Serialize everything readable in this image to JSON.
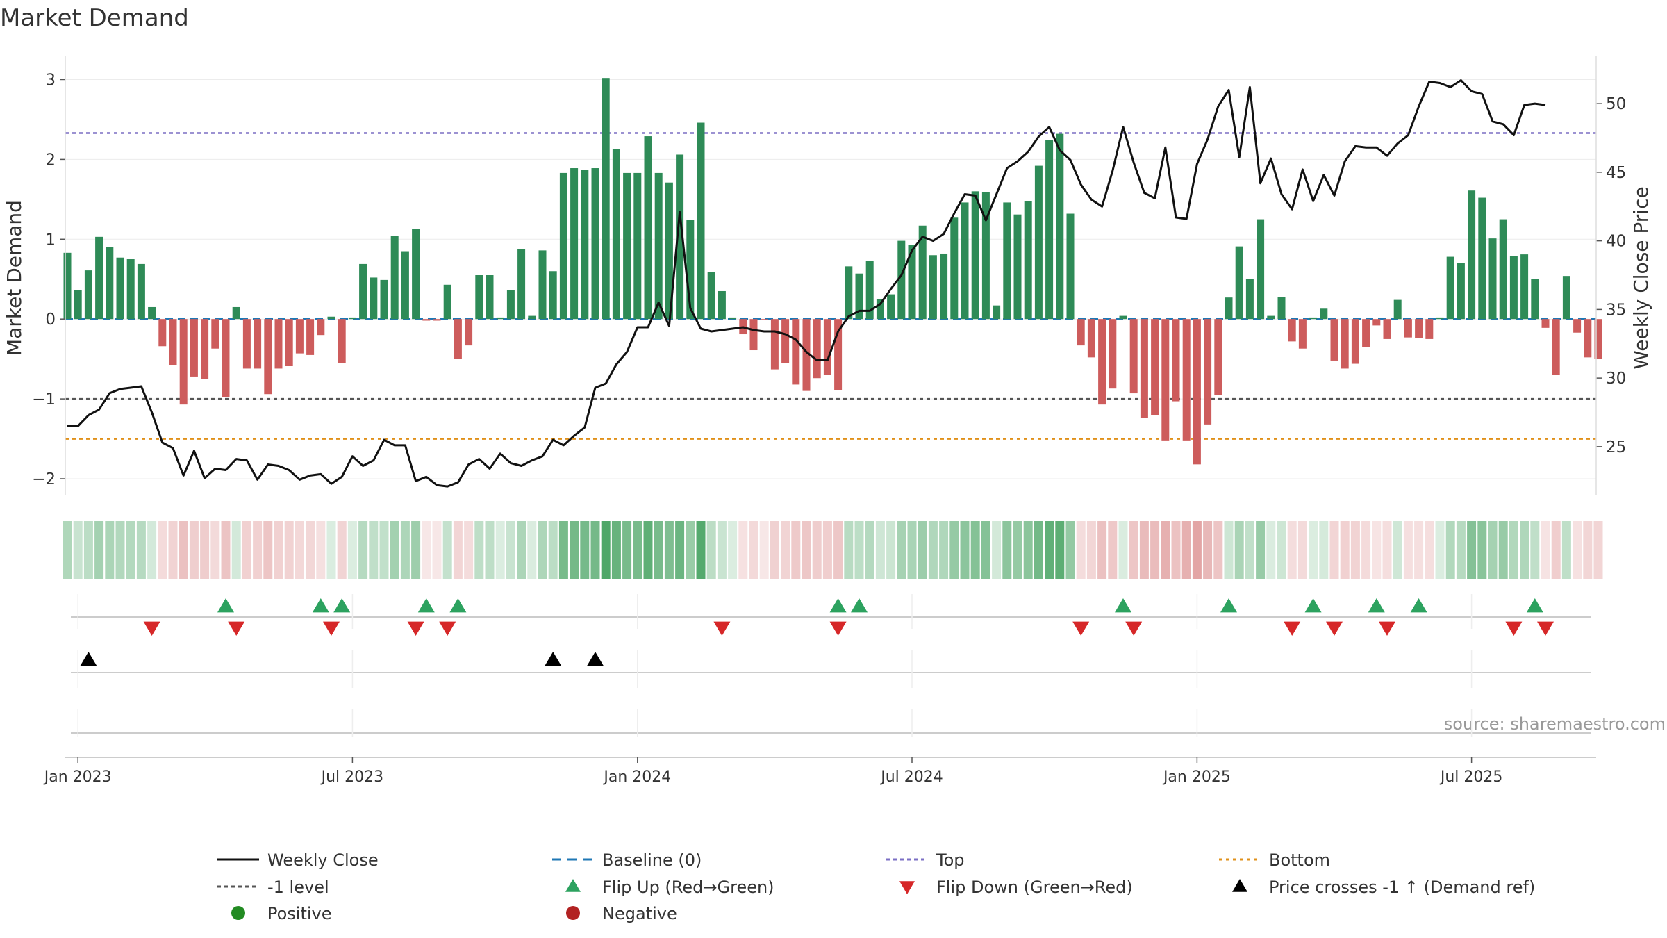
{
  "chart_data": {
    "type": "bar",
    "title": "Market Demand",
    "ylabel_left": "Market Demand",
    "ylabel_right": "Weekly Close Price",
    "source": "source: sharemaestro.com",
    "left_axis": {
      "range": [
        -2.2,
        3.3
      ],
      "ticks": [
        3,
        2,
        1,
        0,
        -1,
        -2
      ],
      "tick_labels": [
        "3",
        "2",
        "1",
        "0",
        "−1",
        "−2"
      ]
    },
    "right_axis": {
      "range": [
        21.5,
        53.5
      ],
      "ticks": [
        50,
        45,
        40,
        35,
        30,
        25
      ],
      "tick_labels": [
        "50",
        "45",
        "40",
        "35",
        "30",
        "25"
      ]
    },
    "x_axis": {
      "start": "2022-12-26",
      "weeks": 146,
      "ticks": [
        {
          "week": 1,
          "label": "Jan 2023"
        },
        {
          "week": 27,
          "label": "Jul 2023"
        },
        {
          "week": 54,
          "label": "Jan 2024"
        },
        {
          "week": 80,
          "label": "Jul 2024"
        },
        {
          "week": 107,
          "label": "Jan 2025"
        },
        {
          "week": 133,
          "label": "Jul 2025"
        }
      ]
    },
    "reference_lines": {
      "baseline": 0,
      "top": 2.33,
      "minus_one": -1,
      "bottom": -1.5
    },
    "series": [
      {
        "name": "Market Demand",
        "kind": "bar",
        "values": [
          0.83,
          0.36,
          0.61,
          1.03,
          0.9,
          0.77,
          0.75,
          0.69,
          0.15,
          -0.34,
          -0.58,
          -1.07,
          -0.72,
          -0.75,
          -0.37,
          -0.98,
          0.15,
          -0.62,
          -0.62,
          -0.94,
          -0.62,
          -0.59,
          -0.43,
          -0.45,
          -0.2,
          0.03,
          -0.55,
          0.02,
          0.69,
          0.52,
          0.49,
          1.04,
          0.85,
          1.13,
          -0.02,
          -0.02,
          0.43,
          -0.5,
          -0.33,
          0.55,
          0.55,
          0.02,
          0.36,
          0.88,
          0.04,
          0.86,
          0.6,
          1.83,
          1.89,
          1.87,
          1.89,
          3.02,
          2.13,
          1.83,
          1.83,
          2.29,
          1.83,
          1.71,
          2.06,
          1.24,
          2.46,
          0.59,
          0.35,
          0.02,
          -0.19,
          -0.39,
          -0.01,
          -0.63,
          -0.55,
          -0.82,
          -0.9,
          -0.74,
          -0.7,
          -0.89,
          0.66,
          0.57,
          0.73,
          0.25,
          0.31,
          0.98,
          0.93,
          1.17,
          0.8,
          0.82,
          1.27,
          1.46,
          1.6,
          1.59,
          0.17,
          1.46,
          1.31,
          1.48,
          1.92,
          2.24,
          2.32,
          1.32,
          -0.33,
          -0.48,
          -1.07,
          -0.87,
          0.04,
          -0.93,
          -1.24,
          -1.2,
          -1.52,
          -1.03,
          -1.52,
          -1.82,
          -1.32,
          -0.95,
          0.27,
          0.91,
          0.5,
          1.25,
          0.04,
          0.28,
          -0.28,
          -0.37,
          0.02,
          0.13,
          -0.52,
          -0.62,
          -0.56,
          -0.35,
          -0.08,
          -0.25,
          0.24,
          -0.23,
          -0.24,
          -0.25,
          0.02,
          0.78,
          0.7,
          1.61,
          1.52,
          1.01,
          1.25,
          0.79,
          0.81,
          0.5,
          -0.11,
          -0.7,
          0.54,
          -0.17,
          -0.48,
          -0.5
        ]
      },
      {
        "name": "Weekly Close",
        "kind": "line",
        "values": [
          26.5,
          26.5,
          27.3,
          27.7,
          28.9,
          29.2,
          29.3,
          29.4,
          27.5,
          25.3,
          24.9,
          22.9,
          24.7,
          22.7,
          23.4,
          23.3,
          24.1,
          24.0,
          22.6,
          23.7,
          23.6,
          23.3,
          22.6,
          22.9,
          23.0,
          22.3,
          22.8,
          24.3,
          23.6,
          24.0,
          25.5,
          25.1,
          25.1,
          22.5,
          22.8,
          22.2,
          22.1,
          22.4,
          23.7,
          24.1,
          23.4,
          24.5,
          23.8,
          23.6,
          24.0,
          24.3,
          25.5,
          25.1,
          25.8,
          26.4,
          29.3,
          29.6,
          31.0,
          31.9,
          33.7,
          33.7,
          35.5,
          33.8,
          42.1,
          35.1,
          33.6,
          33.4,
          33.5,
          33.6,
          33.7,
          33.5,
          33.4,
          33.4,
          33.2,
          32.8,
          31.9,
          31.3,
          31.3,
          33.4,
          34.5,
          34.9,
          34.9,
          35.4,
          36.5,
          37.5,
          39.3,
          40.3,
          40.0,
          40.5,
          42.0,
          43.4,
          43.3,
          41.5,
          43.4,
          45.3,
          45.8,
          46.5,
          47.6,
          48.3,
          46.6,
          45.9,
          44.1,
          43.0,
          42.5,
          45.1,
          48.3,
          45.7,
          43.5,
          43.1,
          46.8,
          41.7,
          41.6,
          45.6,
          47.4,
          49.8,
          51.0,
          46.1,
          51.2,
          44.2,
          46.0,
          43.4,
          42.3,
          45.2,
          42.9,
          44.8,
          43.3,
          45.8,
          46.9,
          46.8,
          46.8,
          46.2,
          47.1,
          47.7,
          49.8,
          51.6,
          51.5,
          51.2,
          51.7,
          50.9,
          50.7,
          48.7,
          48.5,
          47.7,
          49.9,
          50.0,
          49.9
        ]
      }
    ],
    "markers": {
      "flip_up_weeks": [
        15,
        24,
        26,
        34,
        37,
        73,
        75,
        100,
        110,
        118,
        124,
        128,
        139
      ],
      "flip_down_weeks": [
        8,
        16,
        25,
        33,
        36,
        62,
        73,
        96,
        101,
        116,
        120,
        125,
        137,
        140
      ],
      "price_cross_weeks": [
        2,
        46,
        50
      ]
    },
    "legend": [
      {
        "label": "Weekly Close",
        "symbol": "line",
        "color": "#111111"
      },
      {
        "label": "Baseline (0)",
        "symbol": "dash",
        "color": "#1f77b4"
      },
      {
        "label": "Top",
        "symbol": "dot",
        "color": "#7b6fc4"
      },
      {
        "label": "Bottom",
        "symbol": "dot",
        "color": "#e0901a"
      },
      {
        "label": "-1 level",
        "symbol": "dot",
        "color": "#555555"
      },
      {
        "label": "Flip Up (Red→Green)",
        "symbol": "tri-up",
        "color": "#2ca25f"
      },
      {
        "label": "Flip Down (Green→Red)",
        "symbol": "tri-down",
        "color": "#d62728"
      },
      {
        "label": "Price crosses -1 ↑ (Demand ref)",
        "symbol": "tri-up",
        "color": "#000000"
      },
      {
        "label": "Positive",
        "symbol": "circle",
        "color": "#228b22"
      },
      {
        "label": "Negative",
        "symbol": "circle",
        "color": "#b22222"
      }
    ],
    "colors": {
      "positive_bar": "#2e8b57",
      "negative_bar": "#cd5c5c",
      "price_line": "#111111",
      "heat_positive": "#3c9d58",
      "heat_negative": "#d67d7d"
    }
  }
}
